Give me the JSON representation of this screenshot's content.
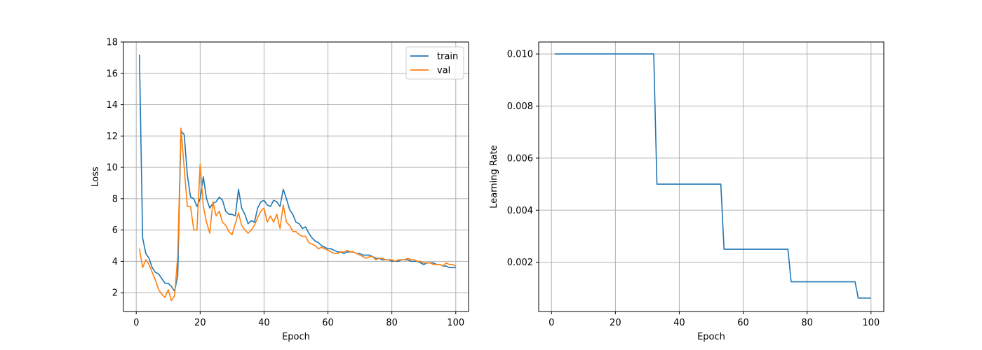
{
  "colors": {
    "train": "#1f77b4",
    "val": "#ff7f0e",
    "lr": "#1f77b4",
    "grid": "#b0b0b0"
  },
  "chart_data": [
    {
      "type": "line",
      "title": "",
      "xlabel": "Epoch",
      "ylabel": "Loss",
      "xlim": [
        -4,
        104
      ],
      "ylim": [
        0.8,
        18
      ],
      "xticks": [
        0,
        20,
        40,
        60,
        80,
        100
      ],
      "yticks": [
        2,
        4,
        6,
        8,
        10,
        12,
        14,
        16,
        18
      ],
      "grid": true,
      "legend": "top-right",
      "x": [
        1,
        2,
        3,
        4,
        5,
        6,
        7,
        8,
        9,
        10,
        11,
        12,
        13,
        14,
        15,
        16,
        17,
        18,
        19,
        20,
        21,
        22,
        23,
        24,
        25,
        26,
        27,
        28,
        29,
        30,
        31,
        32,
        33,
        34,
        35,
        36,
        37,
        38,
        39,
        40,
        41,
        42,
        43,
        44,
        45,
        46,
        47,
        48,
        49,
        50,
        51,
        52,
        53,
        54,
        55,
        56,
        57,
        58,
        59,
        60,
        61,
        62,
        63,
        64,
        65,
        66,
        67,
        68,
        69,
        70,
        71,
        72,
        73,
        74,
        75,
        76,
        77,
        78,
        79,
        80,
        81,
        82,
        83,
        84,
        85,
        86,
        87,
        88,
        89,
        90,
        91,
        92,
        93,
        94,
        95,
        96,
        97,
        98,
        99,
        100
      ],
      "series": [
        {
          "name": "train",
          "values": [
            17.2,
            5.5,
            4.5,
            4.2,
            3.6,
            3.3,
            3.2,
            2.9,
            2.6,
            2.6,
            2.4,
            2.1,
            3.1,
            12.3,
            12.1,
            9.5,
            8.1,
            8.0,
            7.5,
            8.0,
            9.4,
            8.0,
            7.4,
            7.7,
            7.8,
            8.1,
            7.9,
            7.2,
            7.0,
            7.0,
            6.9,
            8.6,
            7.4,
            7.0,
            6.4,
            6.6,
            6.5,
            7.4,
            7.8,
            7.9,
            7.6,
            7.5,
            7.9,
            7.8,
            7.5,
            8.6,
            8.0,
            7.3,
            7.0,
            6.5,
            6.4,
            6.1,
            6.2,
            5.8,
            5.5,
            5.3,
            5.2,
            5.0,
            4.9,
            4.8,
            4.8,
            4.7,
            4.6,
            4.6,
            4.5,
            4.6,
            4.6,
            4.6,
            4.5,
            4.5,
            4.4,
            4.4,
            4.4,
            4.3,
            4.2,
            4.2,
            4.1,
            4.1,
            4.1,
            4.0,
            4.0,
            4.0,
            4.1,
            4.1,
            4.1,
            4.0,
            4.0,
            4.0,
            3.9,
            3.8,
            3.9,
            3.9,
            3.9,
            3.8,
            3.8,
            3.7,
            3.7,
            3.6,
            3.6,
            3.6
          ]
        },
        {
          "name": "val",
          "values": [
            4.8,
            3.6,
            4.1,
            3.8,
            3.3,
            2.8,
            2.2,
            1.9,
            1.7,
            2.2,
            1.5,
            1.8,
            4.4,
            12.5,
            10.0,
            7.5,
            7.5,
            6.0,
            6.0,
            10.2,
            7.5,
            6.5,
            5.8,
            7.8,
            6.9,
            7.2,
            6.5,
            6.3,
            5.9,
            5.7,
            6.4,
            7.1,
            6.3,
            6.0,
            5.8,
            6.0,
            6.3,
            6.8,
            7.2,
            7.4,
            6.5,
            6.9,
            6.5,
            7.0,
            6.1,
            7.6,
            6.5,
            6.3,
            5.9,
            5.9,
            5.7,
            5.6,
            5.6,
            5.2,
            5.1,
            5.0,
            4.8,
            4.9,
            4.8,
            4.7,
            4.6,
            4.5,
            4.5,
            4.6,
            4.6,
            4.7,
            4.6,
            4.6,
            4.5,
            4.4,
            4.3,
            4.2,
            4.3,
            4.3,
            4.1,
            4.2,
            4.2,
            4.1,
            4.1,
            4.1,
            4.0,
            4.1,
            4.1,
            4.1,
            4.2,
            4.1,
            4.1,
            4.0,
            4.0,
            3.9,
            3.9,
            3.9,
            3.8,
            3.8,
            3.8,
            3.7,
            3.9,
            3.8,
            3.8,
            3.7
          ]
        }
      ]
    },
    {
      "type": "line",
      "title": "",
      "xlabel": "Epoch",
      "ylabel": "Learning Rate",
      "xlim": [
        -4,
        104
      ],
      "ylim": [
        0.00011,
        0.01046
      ],
      "xticks": [
        0,
        20,
        40,
        60,
        80,
        100
      ],
      "yticks": [
        0.002,
        0.004,
        0.006,
        0.008,
        0.01
      ],
      "ytick_labels": [
        "0.002",
        "0.004",
        "0.006",
        "0.008",
        "0.010"
      ],
      "grid": true,
      "x": [
        1,
        2,
        3,
        4,
        5,
        6,
        7,
        8,
        9,
        10,
        11,
        12,
        13,
        14,
        15,
        16,
        17,
        18,
        19,
        20,
        21,
        22,
        23,
        24,
        25,
        26,
        27,
        28,
        29,
        30,
        31,
        32,
        33,
        34,
        35,
        36,
        37,
        38,
        39,
        40,
        41,
        42,
        43,
        44,
        45,
        46,
        47,
        48,
        49,
        50,
        51,
        52,
        53,
        54,
        55,
        56,
        57,
        58,
        59,
        60,
        61,
        62,
        63,
        64,
        65,
        66,
        67,
        68,
        69,
        70,
        71,
        72,
        73,
        74,
        75,
        76,
        77,
        78,
        79,
        80,
        81,
        82,
        83,
        84,
        85,
        86,
        87,
        88,
        89,
        90,
        91,
        92,
        93,
        94,
        95,
        96,
        97,
        98,
        99,
        100
      ],
      "series": [
        {
          "name": "",
          "values": [
            0.01,
            0.01,
            0.01,
            0.01,
            0.01,
            0.01,
            0.01,
            0.01,
            0.01,
            0.01,
            0.01,
            0.01,
            0.01,
            0.01,
            0.01,
            0.01,
            0.01,
            0.01,
            0.01,
            0.01,
            0.01,
            0.01,
            0.01,
            0.01,
            0.01,
            0.01,
            0.01,
            0.01,
            0.01,
            0.01,
            0.01,
            0.01,
            0.005,
            0.005,
            0.005,
            0.005,
            0.005,
            0.005,
            0.005,
            0.005,
            0.005,
            0.005,
            0.005,
            0.005,
            0.005,
            0.005,
            0.005,
            0.005,
            0.005,
            0.005,
            0.005,
            0.005,
            0.005,
            0.0025,
            0.0025,
            0.0025,
            0.0025,
            0.0025,
            0.0025,
            0.0025,
            0.0025,
            0.0025,
            0.0025,
            0.0025,
            0.0025,
            0.0025,
            0.0025,
            0.0025,
            0.0025,
            0.0025,
            0.0025,
            0.0025,
            0.0025,
            0.0025,
            0.00125,
            0.00125,
            0.00125,
            0.00125,
            0.00125,
            0.00125,
            0.00125,
            0.00125,
            0.00125,
            0.00125,
            0.00125,
            0.00125,
            0.00125,
            0.00125,
            0.00125,
            0.00125,
            0.00125,
            0.00125,
            0.00125,
            0.00125,
            0.00125,
            0.000625,
            0.000625,
            0.000625,
            0.000625,
            0.000625
          ]
        }
      ]
    }
  ]
}
